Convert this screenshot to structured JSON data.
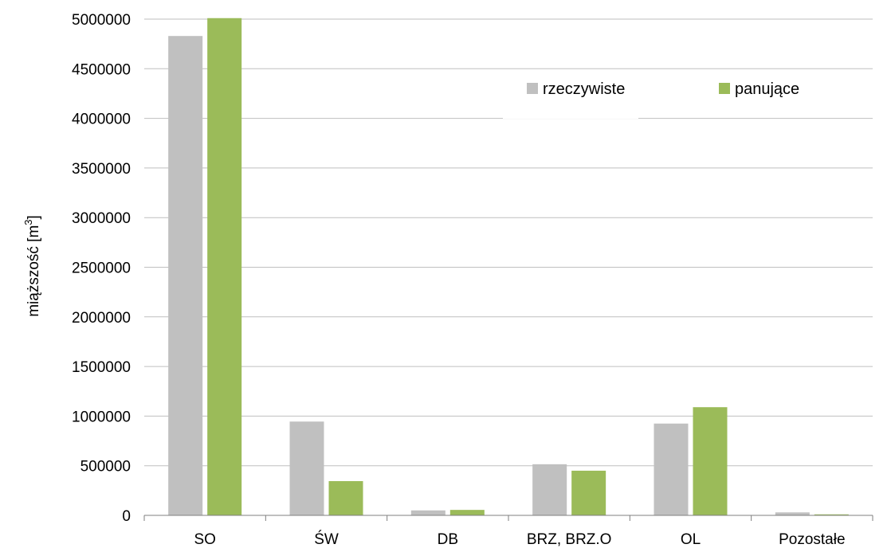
{
  "chart_data": {
    "type": "bar",
    "title": "",
    "xlabel": "",
    "ylabel": "miąższość [m",
    "ylabel_superscript": "3",
    "ylabel_suffix": "]",
    "categories": [
      "SO",
      "ŚW",
      "DB",
      "BRZ, BRZ.O",
      "OL",
      "Pozostałe"
    ],
    "series": [
      {
        "name": "rzeczywiste",
        "color": "#c0c0c0",
        "values": [
          4830000,
          945000,
          50000,
          515000,
          925000,
          30000
        ]
      },
      {
        "name": "panujące",
        "color": "#9bbb59",
        "values": [
          5010000,
          345000,
          55000,
          450000,
          1090000,
          10000
        ]
      }
    ],
    "ylim": [
      0,
      5000000
    ],
    "yticks": [
      0,
      500000,
      1000000,
      1500000,
      2000000,
      2500000,
      3000000,
      3500000,
      4000000,
      4500000,
      5000000
    ],
    "grid": true,
    "legend_position": "top-right"
  }
}
